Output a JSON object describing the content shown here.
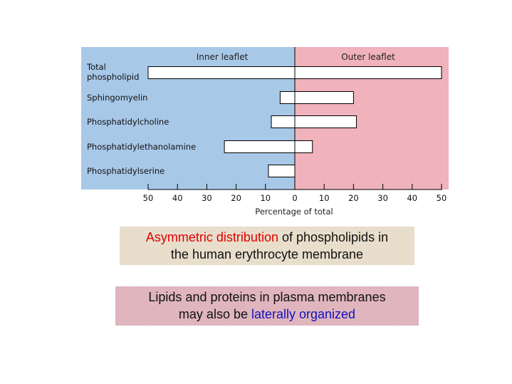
{
  "chart_data": {
    "type": "bar",
    "orientation": "horizontal-diverging",
    "categories": [
      "Total phospholipid",
      "Sphingomyelin",
      "Phosphatidylcholine",
      "Phosphatidylethanolamine",
      "Phosphatidylserine"
    ],
    "category_lines": [
      [
        "Total",
        "phospholipid"
      ],
      [
        "Sphingomyelin"
      ],
      [
        "Phosphatidylcholine"
      ],
      [
        "Phosphatidylethanolamine"
      ],
      [
        "Phosphatidylserine"
      ]
    ],
    "series": [
      {
        "name": "Inner leaflet",
        "values": [
          50,
          5,
          8,
          24,
          9
        ]
      },
      {
        "name": "Outer leaflet",
        "values": [
          50,
          20,
          21,
          6,
          0
        ]
      }
    ],
    "xlabel": "Percentage of total",
    "xlim": [
      -50,
      50
    ],
    "ticks": [
      50,
      40,
      30,
      20,
      10,
      0,
      10,
      20,
      30,
      40,
      50
    ],
    "grid": false,
    "colors": {
      "inner": "#a8c8e8",
      "outer": "#f0b2bb",
      "bar_fill": "#ffffff",
      "stroke": "#000000"
    }
  },
  "caption1": {
    "highlight": "Asymmetric distribution",
    "text_after": " of phospholipids in",
    "line2": "the human erythrocyte membrane",
    "highlight_color": "#e00000",
    "background": "#e9dfcc"
  },
  "caption2": {
    "line1": "Lipids and proteins in plasma membranes",
    "text_before": "may also be ",
    "highlight": "laterally organized",
    "highlight_color": "#1111bb",
    "background": "#dfb4bd"
  }
}
